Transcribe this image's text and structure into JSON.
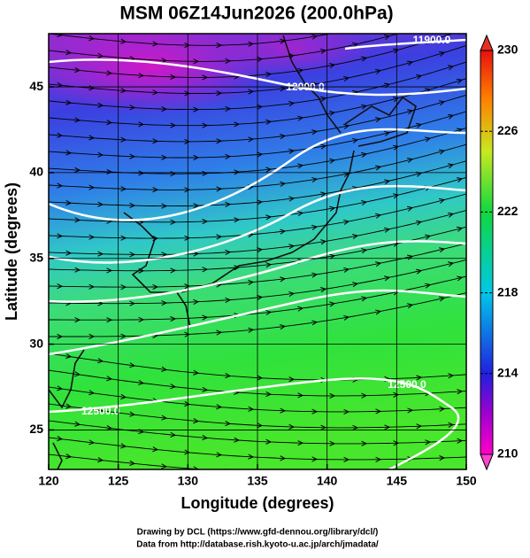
{
  "chart_data": {
    "type": "map",
    "title": "MSM 06Z14Jun2026 (200.0hPa)",
    "x_label": "Longitude (degrees)",
    "y_label": "Latitude  (degrees)",
    "xlim": [
      120,
      150
    ],
    "ylim": [
      22.7,
      48.1
    ],
    "xticks": [
      120,
      125,
      130,
      135,
      140,
      145,
      150
    ],
    "yticks": [
      25,
      30,
      35,
      40,
      45
    ],
    "grid": true,
    "colorbar": {
      "clim": [
        210,
        230
      ],
      "cticks": [
        210,
        214,
        218,
        222,
        226,
        230
      ]
    },
    "contour_labels": [
      "11900.0",
      "12000.0",
      "12500.0",
      "12500.0"
    ],
    "credits": [
      "Drawing by DCL (https://www.gfd-dennou.org/library/dcl/)",
      "Data from http://database.rish.kyoto-u.ac.jp/arch/jmadata/"
    ]
  }
}
